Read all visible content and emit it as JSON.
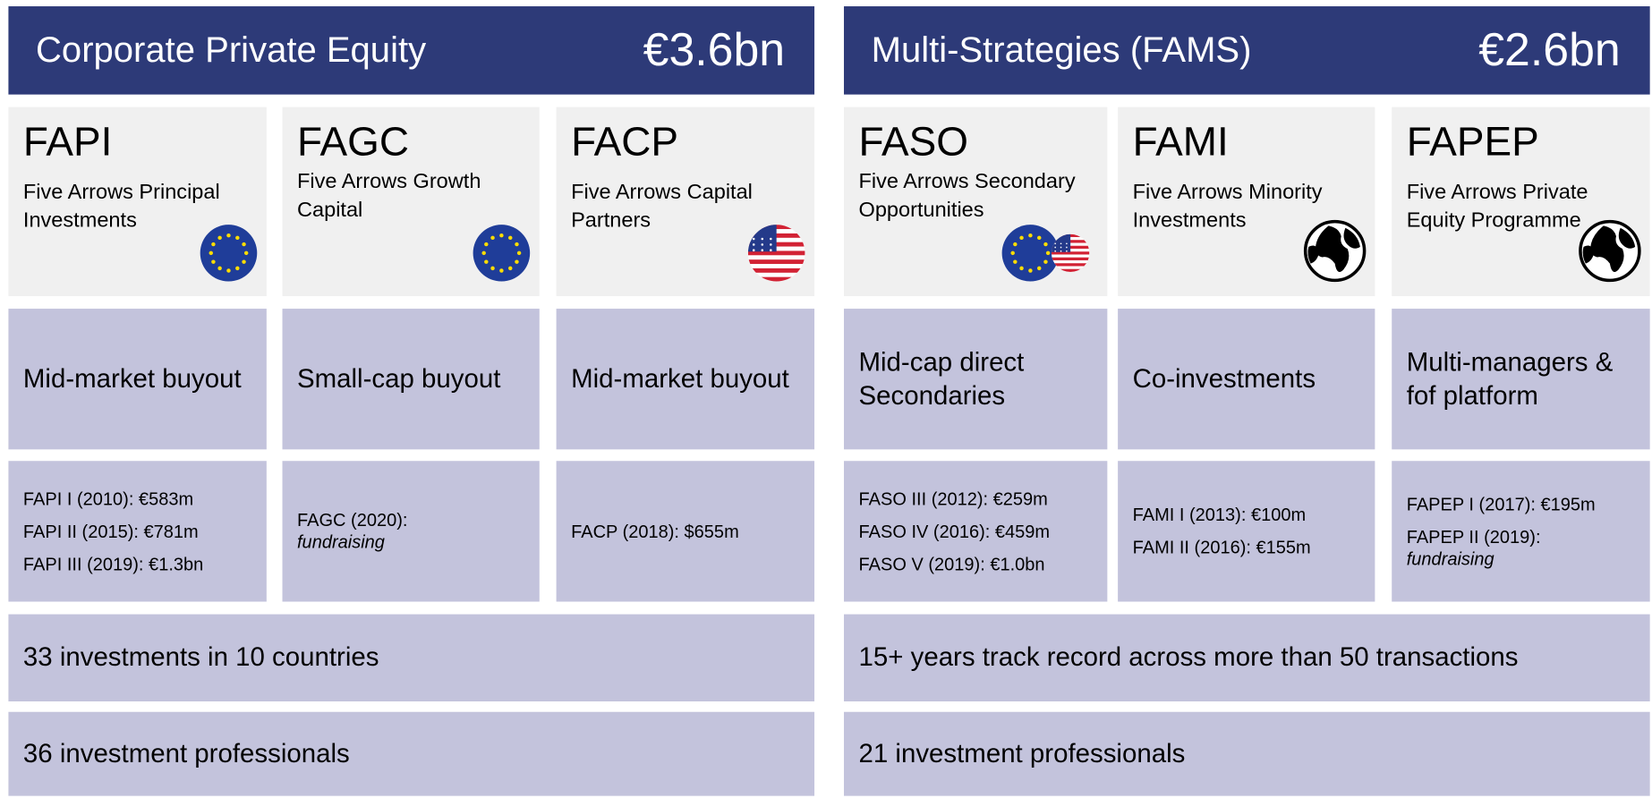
{
  "sections": [
    {
      "title": "Corporate Private Equity",
      "amount": "€3.6bn",
      "funds": [
        {
          "code": "FAPI",
          "name": "Five Arrows Principal Investments",
          "strategy": "Mid-market buyout",
          "vintages": [
            "FAPI I (2010): €583m",
            "FAPI II (2015): €781m",
            "FAPI III (2019): €1.3bn"
          ]
        },
        {
          "code": "FAGC",
          "name": "Five Arrows Growth Capital",
          "strategy": "Small-cap buyout",
          "vintages": [
            {
              "label": "FAGC (2020):",
              "status": "fundraising"
            }
          ]
        },
        {
          "code": "FACP",
          "name": "Five Arrows Capital Partners",
          "strategy": "Mid-market buyout",
          "vintages": [
            "FACP (2018): $655m"
          ]
        }
      ],
      "facts": [
        "33 investments in 10 countries",
        "36 investment professionals"
      ]
    },
    {
      "title": "Multi-Strategies (FAMS)",
      "amount": "€2.6bn",
      "funds": [
        {
          "code": "FASO",
          "name": "Five Arrows Secondary Opportunities",
          "strategy": "Mid-cap direct Secondaries",
          "vintages": [
            "FASO III (2012): €259m",
            "FASO IV (2016): €459m",
            "FASO V (2019): €1.0bn"
          ]
        },
        {
          "code": "FAMI",
          "name": "Five Arrows Minority Investments",
          "strategy": "Co-investments",
          "vintages": [
            "FAMI I (2013): €100m",
            "FAMI II (2016): €155m"
          ]
        },
        {
          "code": "FAPEP",
          "name": "Five Arrows Private Equity Programme",
          "strategy": "Multi-managers & fof platform",
          "vintages": [
            "FAPEP I (2017): €195m",
            {
              "label": "FAPEP II (2019):",
              "status": "fundraising"
            }
          ]
        }
      ],
      "facts": [
        "15+ years track record across more than 50 transactions",
        "21 investment professionals"
      ]
    }
  ]
}
